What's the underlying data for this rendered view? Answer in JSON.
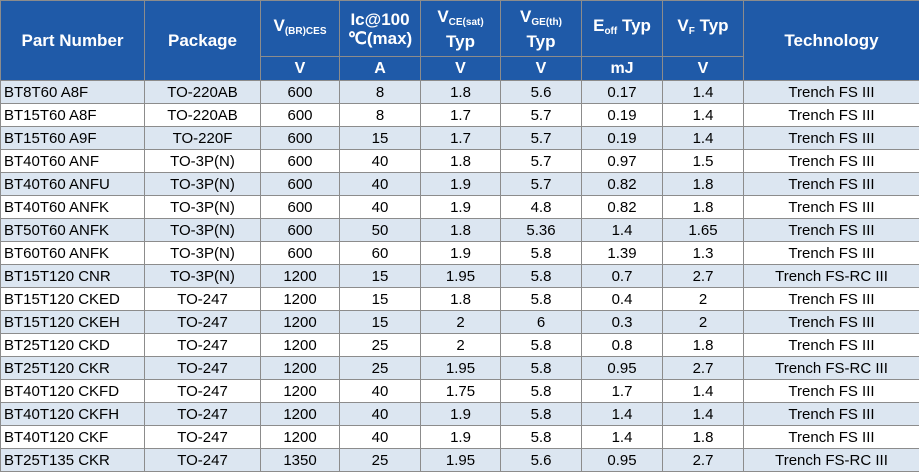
{
  "header": {
    "part_number": "Part Number",
    "package": "Package",
    "vbr": {
      "main": "V",
      "sub": "(BR)CES"
    },
    "ic": {
      "line1": "Ic@100",
      "line2": "℃(max)"
    },
    "vce": {
      "main": "V",
      "sub": "CE(sat)",
      "line2": "Typ"
    },
    "vge": {
      "main": "V",
      "sub": "GE(th)",
      "line2": "Typ"
    },
    "eoff": {
      "main": "E",
      "sub": "off",
      "suffix": " Typ"
    },
    "vf": {
      "main": "V",
      "sub": "F",
      "suffix": " Typ"
    },
    "technology": "Technology"
  },
  "units": [
    "V",
    "A",
    "V",
    "V",
    "mJ",
    "V"
  ],
  "rows": [
    [
      "BT8T60 A8F",
      "TO-220AB",
      "600",
      "8",
      "1.8",
      "5.6",
      "0.17",
      "1.4",
      "Trench FS III"
    ],
    [
      "BT15T60 A8F",
      "TO-220AB",
      "600",
      "8",
      "1.7",
      "5.7",
      "0.19",
      "1.4",
      "Trench FS III"
    ],
    [
      "BT15T60 A9F",
      "TO-220F",
      "600",
      "15",
      "1.7",
      "5.7",
      "0.19",
      "1.4",
      "Trench FS III"
    ],
    [
      "BT40T60 ANF",
      "TO-3P(N)",
      "600",
      "40",
      "1.8",
      "5.7",
      "0.97",
      "1.5",
      "Trench FS III"
    ],
    [
      "BT40T60 ANFU",
      "TO-3P(N)",
      "600",
      "40",
      "1.9",
      "5.7",
      "0.82",
      "1.8",
      "Trench FS III"
    ],
    [
      "BT40T60 ANFK",
      "TO-3P(N)",
      "600",
      "40",
      "1.9",
      "4.8",
      "0.82",
      "1.8",
      "Trench FS III"
    ],
    [
      "BT50T60 ANFK",
      "TO-3P(N)",
      "600",
      "50",
      "1.8",
      "5.36",
      "1.4",
      "1.65",
      "Trench FS III"
    ],
    [
      "BT60T60 ANFK",
      "TO-3P(N)",
      "600",
      "60",
      "1.9",
      "5.8",
      "1.39",
      "1.3",
      "Trench FS III"
    ],
    [
      "BT15T120 CNR",
      "TO-3P(N)",
      "1200",
      "15",
      "1.95",
      "5.8",
      "0.7",
      "2.7",
      "Trench FS-RC III"
    ],
    [
      "BT15T120 CKED",
      "TO-247",
      "1200",
      "15",
      "1.8",
      "5.8",
      "0.4",
      "2",
      "Trench FS III"
    ],
    [
      "BT15T120 CKEH",
      "TO-247",
      "1200",
      "15",
      "2",
      "6",
      "0.3",
      "2",
      "Trench FS III"
    ],
    [
      "BT25T120 CKD",
      "TO-247",
      "1200",
      "25",
      "2",
      "5.8",
      "0.8",
      "1.8",
      "Trench FS III"
    ],
    [
      "BT25T120 CKR",
      "TO-247",
      "1200",
      "25",
      "1.95",
      "5.8",
      "0.95",
      "2.7",
      "Trench FS-RC III"
    ],
    [
      "BT40T120 CKFD",
      "TO-247",
      "1200",
      "40",
      "1.75",
      "5.8",
      "1.7",
      "1.4",
      "Trench FS III"
    ],
    [
      "BT40T120 CKFH",
      "TO-247",
      "1200",
      "40",
      "1.9",
      "5.8",
      "1.4",
      "1.4",
      "Trench FS III"
    ],
    [
      "BT40T120 CKF",
      "TO-247",
      "1200",
      "40",
      "1.9",
      "5.8",
      "1.4",
      "1.8",
      "Trench FS III"
    ],
    [
      "BT25T135 CKR",
      "TO-247",
      "1350",
      "25",
      "1.95",
      "5.6",
      "0.95",
      "2.7",
      "Trench FS-RC III"
    ]
  ],
  "colors": {
    "header_bg": "#1f5aa8",
    "stripe_bg": "#dce6f1",
    "border": "#8c8c8c"
  }
}
